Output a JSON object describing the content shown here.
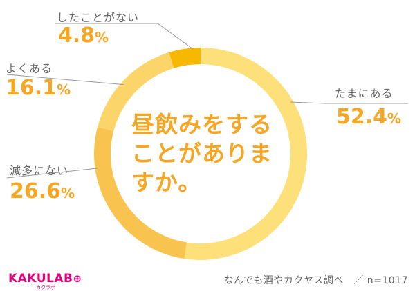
{
  "chart_data": {
    "type": "pie",
    "title": "昼飲みをすることがありますか。",
    "categories": [
      "たまにある",
      "滅多にない",
      "よくある",
      "したことがない"
    ],
    "values": [
      52.4,
      26.6,
      16.1,
      4.8
    ],
    "unit": "%",
    "value_labels": [
      "52.4",
      "26.6",
      "16.1",
      "4.8"
    ],
    "colors": [
      "#fde07a",
      "#f8c44f",
      "#fbd56a",
      "#f6b800"
    ]
  },
  "footer": {
    "logo": "KAKULAB",
    "logo_sub": "カクラボ",
    "source": "なんでも酒やカクヤス調べ　／ n=1017"
  }
}
